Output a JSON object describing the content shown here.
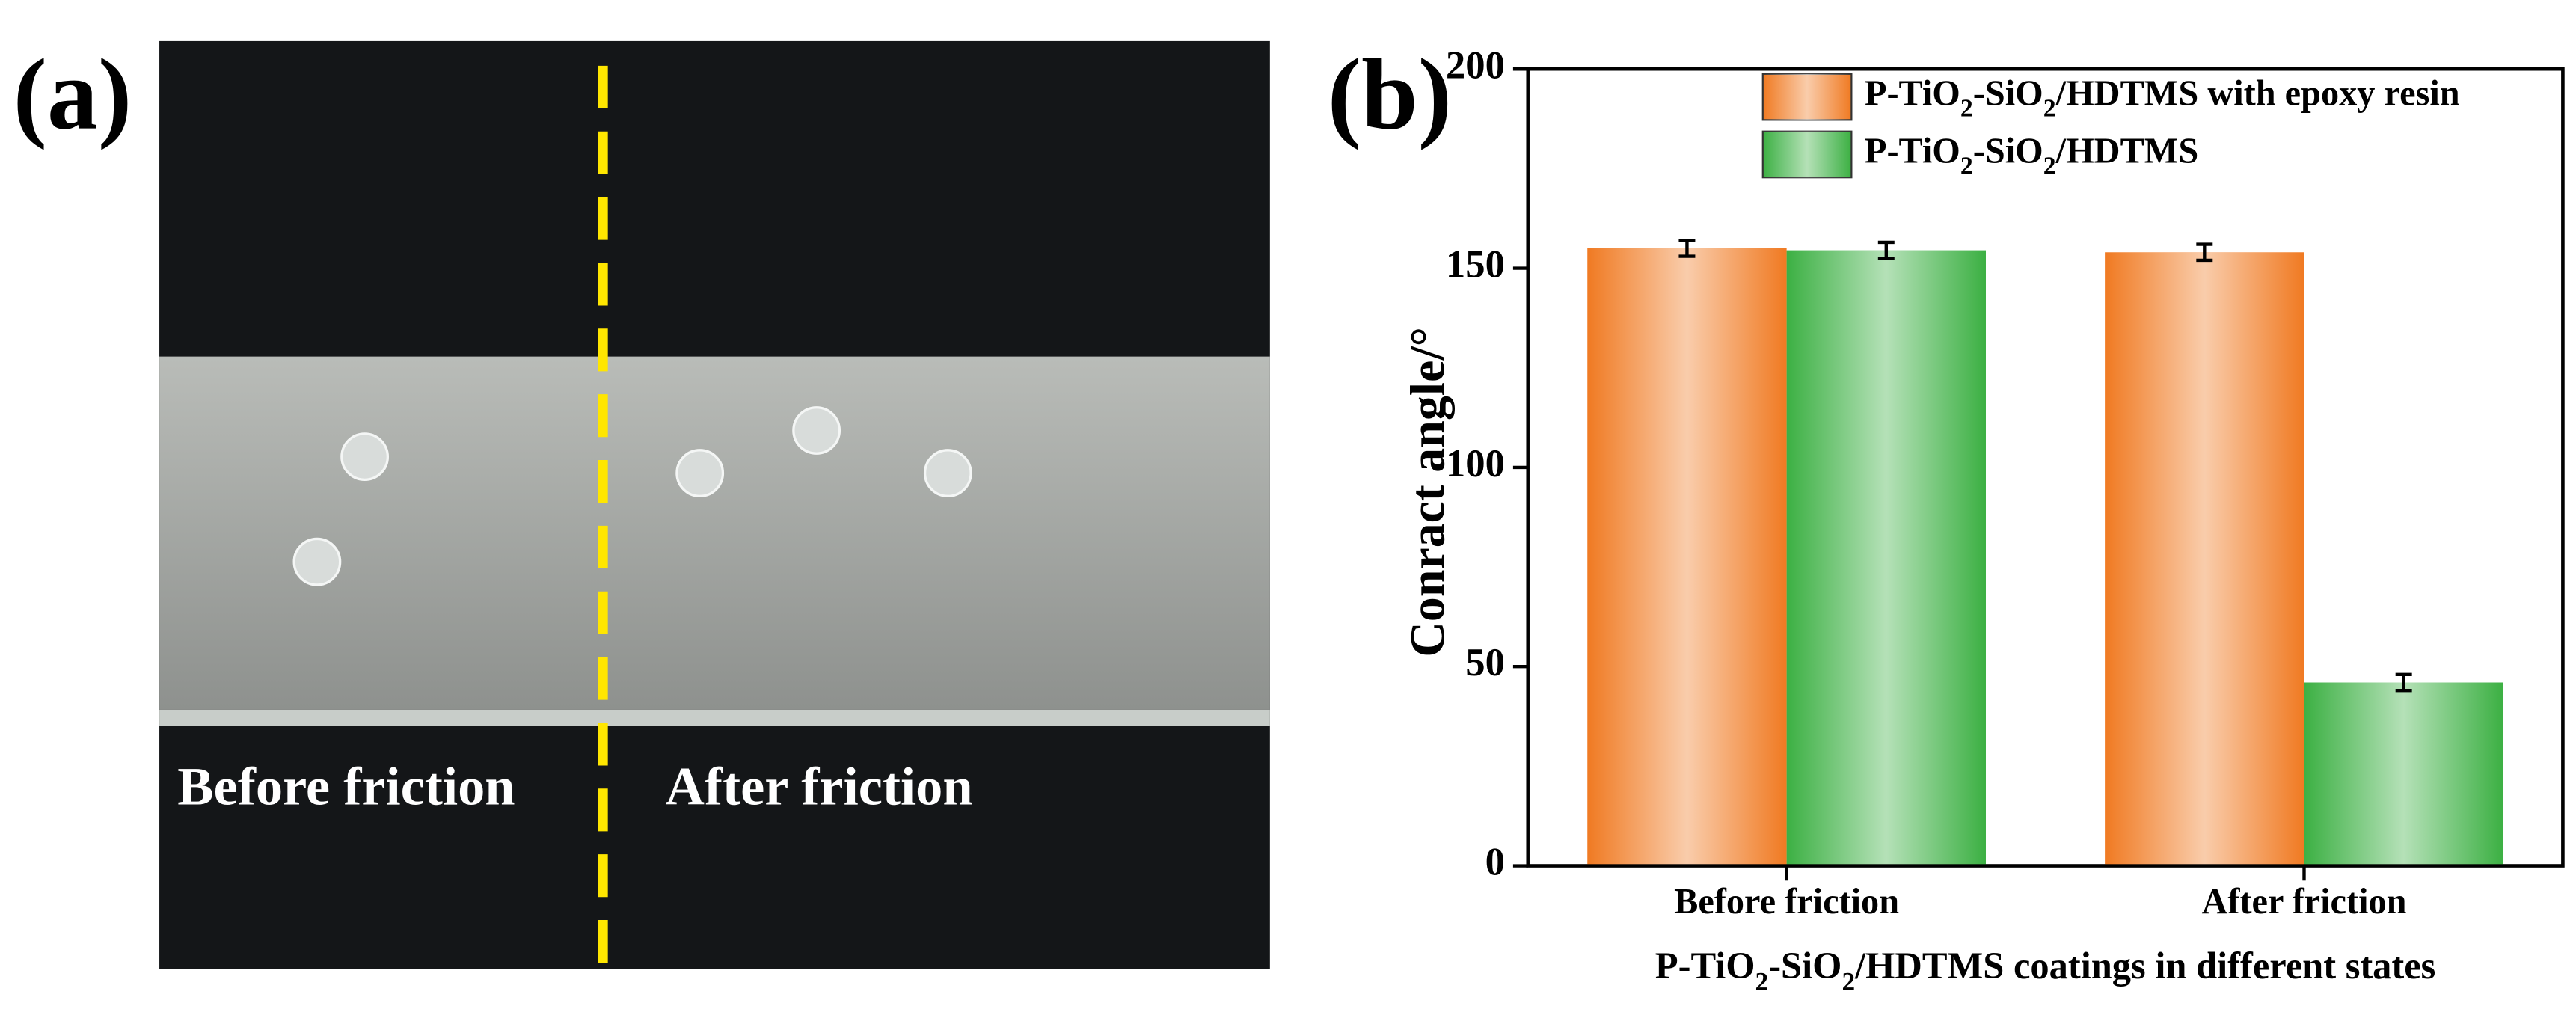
{
  "panel_a": {
    "label": "(a)",
    "left_text": "Before friction",
    "right_text": "After friction"
  },
  "chart_data": {
    "type": "bar",
    "panel_label": "(b)",
    "x_label": "P-TiO2-SiO2/HDTMS coatings in different states",
    "y_label": "Conract angle/°",
    "categories": [
      "Before friction",
      "After friction"
    ],
    "series": [
      {
        "name": "P-TiO2-SiO2/HDTMS with epoxy resin",
        "color": "#f07a22",
        "values": [
          155,
          154
        ],
        "errors": [
          2,
          2
        ]
      },
      {
        "name": "P-TiO2-SiO2/HDTMS",
        "color": "#3cb043",
        "values": [
          154.5,
          46
        ],
        "errors": [
          2,
          2
        ]
      }
    ],
    "ylim": [
      0,
      200
    ],
    "yticks": [
      0,
      50,
      100,
      150,
      200
    ],
    "legend": "upper right"
  }
}
